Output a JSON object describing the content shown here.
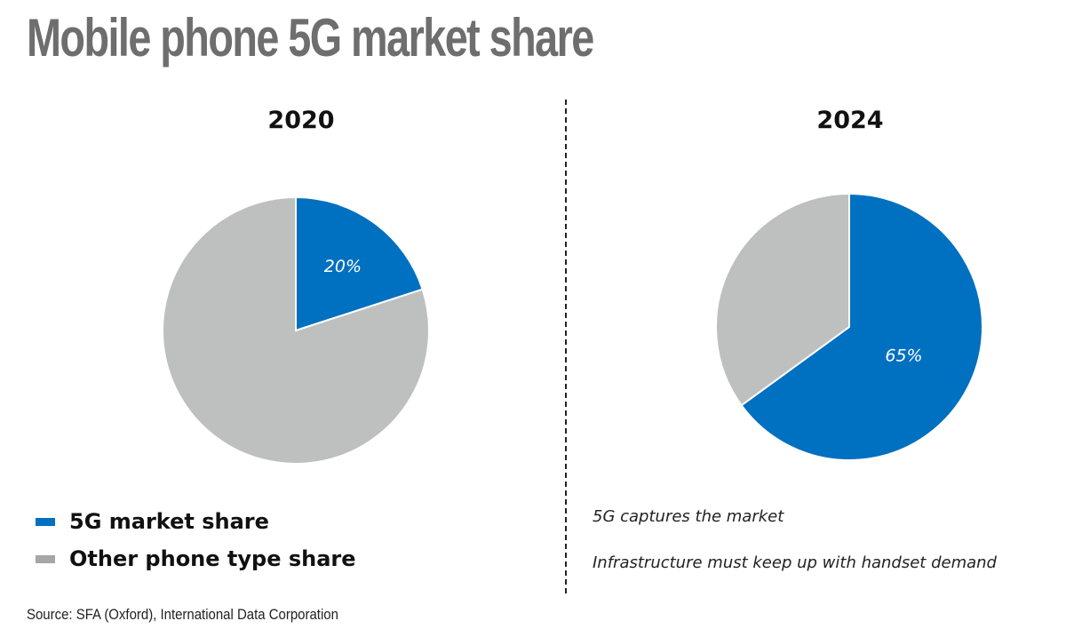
{
  "title": "Mobile phone 5G market share",
  "chart_data": [
    {
      "type": "pie",
      "title": "2020",
      "categories": [
        "5G market share",
        "Other phone type share"
      ],
      "values": [
        20,
        80
      ],
      "labels": [
        "20%",
        ""
      ],
      "colors": [
        "#0070c0",
        "#bebfbf"
      ]
    },
    {
      "type": "pie",
      "title": "2024",
      "categories": [
        "5G market share",
        "Other phone type share"
      ],
      "values": [
        65,
        35
      ],
      "labels": [
        "65%",
        ""
      ],
      "colors": [
        "#0070c0",
        "#bebfbf"
      ]
    }
  ],
  "legend": {
    "items": [
      {
        "label": "5G market share",
        "color": "#0070c0"
      },
      {
        "label": "Other phone type share",
        "color": "#a6a6a6"
      }
    ]
  },
  "notes": [
    "5G captures the market",
    "Infrastructure must keep up with handset demand"
  ],
  "source": "Source: SFA (Oxford), International Data Corporation"
}
